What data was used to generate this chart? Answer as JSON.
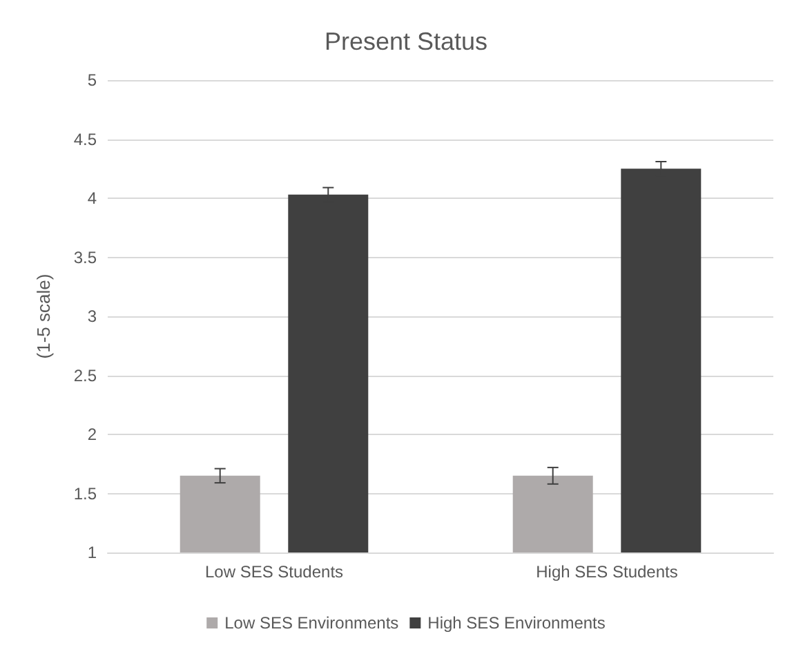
{
  "chart_data": {
    "type": "bar",
    "title": "Present Status",
    "ylabel": "(1-5 scale)",
    "categories": [
      "Low SES Students",
      "High SES Students"
    ],
    "series": [
      {
        "name": "Low SES Environments",
        "color": "#aeaaaa",
        "values": [
          1.65,
          1.65
        ],
        "errors": [
          0.06,
          0.07
        ]
      },
      {
        "name": "High SES Environments",
        "color": "#404040",
        "values": [
          4.03,
          4.25
        ],
        "errors": [
          0.06,
          0.06
        ]
      }
    ],
    "ylim": [
      1,
      5
    ],
    "yticks": [
      1,
      1.5,
      2,
      2.5,
      3,
      3.5,
      4,
      4.5,
      5
    ],
    "grid": "y",
    "legend": "bottom"
  }
}
